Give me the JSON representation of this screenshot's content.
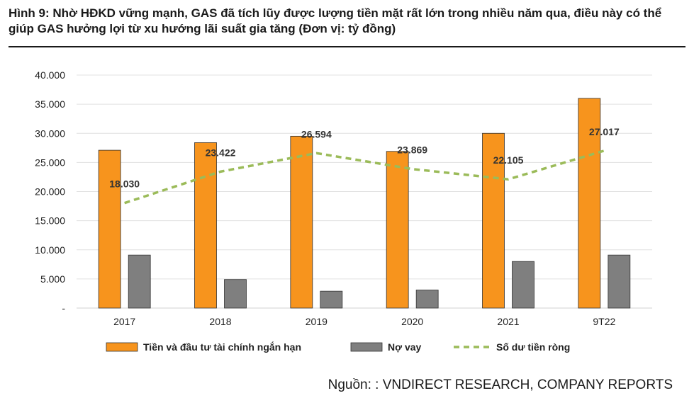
{
  "title": "Hình 9: Nhờ HĐKD vững mạnh, GAS đã tích lũy được lượng tiền mặt rất lớn trong nhiều năm qua, điều này có thể giúp GAS hưởng lợi từ xu hướng lãi suất gia tăng (Đơn vị: tỷ đồng)",
  "source": "Nguồn: : VNDIRECT RESEARCH, COMPANY REPORTS",
  "chart_data": {
    "type": "bar",
    "categories": [
      "2017",
      "2018",
      "2019",
      "2020",
      "2021",
      "9T22"
    ],
    "series": [
      {
        "name": "Tiền và đầu tư tài chính ngắn hạn",
        "kind": "bar",
        "color": "#F7941D",
        "values": [
          27100,
          28400,
          29500,
          26900,
          30000,
          36000
        ]
      },
      {
        "name": "Nợ vay",
        "kind": "bar",
        "color": "#7F7F7F",
        "values": [
          9100,
          4900,
          2900,
          3100,
          8000,
          9100
        ]
      },
      {
        "name": "Số dư tiền ròng",
        "kind": "line-dashed",
        "color": "#9BBB59",
        "values": [
          18030,
          23422,
          26594,
          23869,
          22105,
          27017
        ],
        "labels": [
          "18.030",
          "23.422",
          "26.594",
          "23.869",
          "22.105",
          "27.017"
        ]
      }
    ],
    "ylim": [
      0,
      40000
    ],
    "yticks": [
      "-",
      "5.000",
      "10.000",
      "15.000",
      "20.000",
      "25.000",
      "30.000",
      "35.000",
      "40.000"
    ],
    "grid": true,
    "legend": "bottom"
  }
}
